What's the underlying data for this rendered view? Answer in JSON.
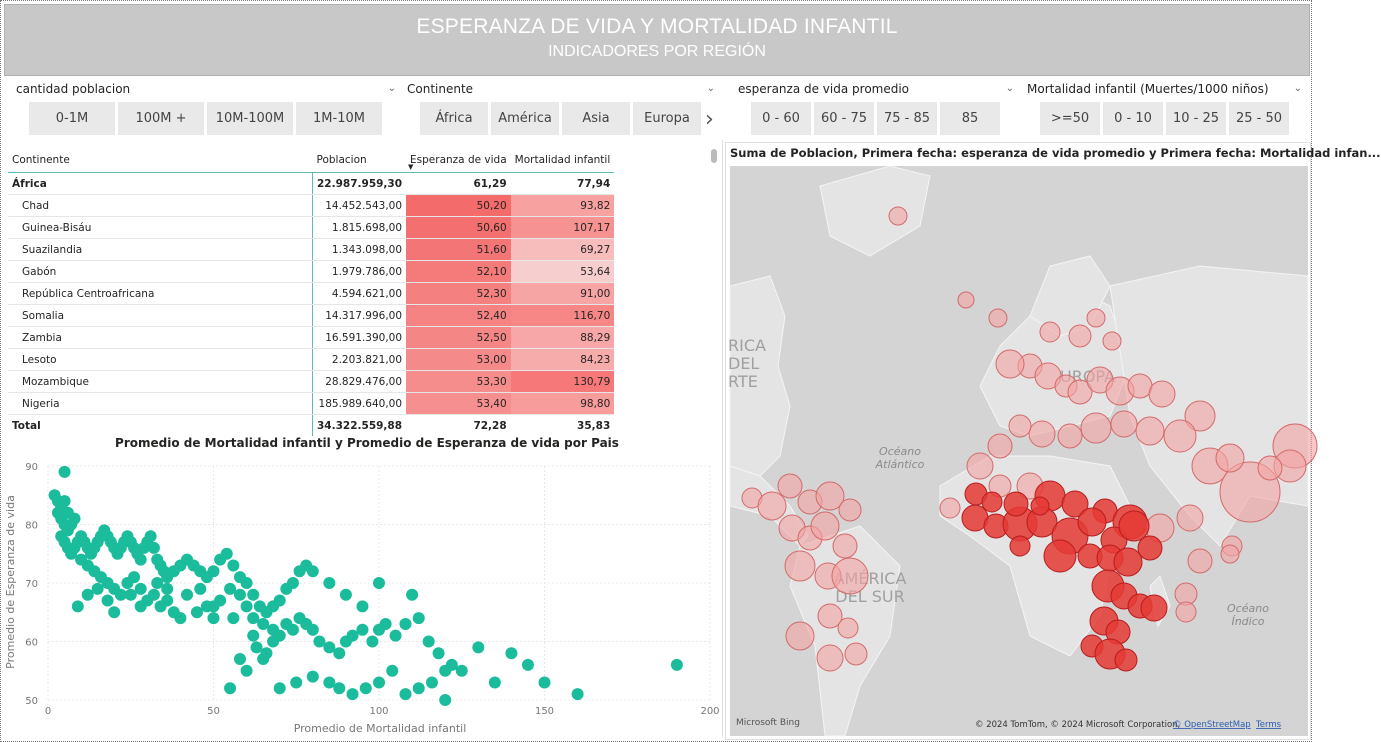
{
  "header": {
    "title": "ESPERANZA DE VIDA Y MORTALIDAD INFANTIL",
    "subtitle": "INDICADORES POR REGIÓN"
  },
  "slicers": [
    {
      "label": "cantidad poblacion",
      "options": [
        "0-1M",
        "100M +",
        "10M-100M",
        "1M-10M"
      ]
    },
    {
      "label": "Continente",
      "options": [
        "África",
        "América",
        "Asia",
        "Europa"
      ]
    },
    {
      "label": "esperanza de vida promedio",
      "options": [
        "0 - 60",
        "60 - 75",
        "75 - 85",
        "85"
      ]
    },
    {
      "label": "Mortalidad infantil (Muertes/1000 niños)",
      "options": [
        ">=50",
        "0 - 10",
        "10 - 25",
        "25 - 50"
      ]
    }
  ],
  "table": {
    "headers": [
      "Continente",
      "Poblacion",
      "Esperanza de vida",
      "Mortalidad infantil"
    ],
    "group": {
      "name": "África",
      "pob": "22.987.959,30",
      "esp": "61,29",
      "mort": "77,94"
    },
    "rows": [
      {
        "name": "Chad",
        "pob": "14.452.543,00",
        "esp": "50,20",
        "mort": "93,82"
      },
      {
        "name": "Guinea-Bisáu",
        "pob": "1.815.698,00",
        "esp": "50,60",
        "mort": "107,17"
      },
      {
        "name": "Suazilandia",
        "pob": "1.343.098,00",
        "esp": "51,60",
        "mort": "69,27"
      },
      {
        "name": "Gabón",
        "pob": "1.979.786,00",
        "esp": "52,10",
        "mort": "53,64"
      },
      {
        "name": "República Centroafricana",
        "pob": "4.594.621,00",
        "esp": "52,30",
        "mort": "91,00"
      },
      {
        "name": "Somalia",
        "pob": "14.317.996,00",
        "esp": "52,40",
        "mort": "116,70"
      },
      {
        "name": "Zambia",
        "pob": "16.591.390,00",
        "esp": "52,50",
        "mort": "88,29"
      },
      {
        "name": "Lesoto",
        "pob": "2.203.821,00",
        "esp": "53,00",
        "mort": "84,23"
      },
      {
        "name": "Mozambique",
        "pob": "28.829.476,00",
        "esp": "53,30",
        "mort": "130,79"
      },
      {
        "name": "Nigeria",
        "pob": "185.989.640,00",
        "esp": "53,40",
        "mort": "98,80"
      }
    ],
    "total": {
      "name": "Total",
      "pob": "34.322.559,88",
      "esp": "72,28",
      "mort": "35,83"
    }
  },
  "colors": {
    "banner": "#c8c8c8",
    "scatter": "#1abc9c",
    "map_land": "#e2e2e2",
    "map_water": "#d2d2d2",
    "bubble": "#e53935"
  },
  "chart_data": {
    "type": "scatter",
    "title": "Promedio de Mortalidad infantil y Promedio de Esperanza de vida por Pais",
    "xlabel": "Promedio de Mortalidad infantil",
    "ylabel": "Promedio de Esperanza de vida",
    "xlim": [
      0,
      200
    ],
    "ylim": [
      50,
      90
    ],
    "xticks": [
      0,
      50,
      100,
      150,
      200
    ],
    "yticks": [
      50,
      60,
      70,
      80,
      90
    ],
    "points": [
      [
        5,
        89
      ],
      [
        2,
        85
      ],
      [
        3,
        84
      ],
      [
        4,
        83
      ],
      [
        5,
        84
      ],
      [
        6,
        82
      ],
      [
        3,
        82
      ],
      [
        4,
        81
      ],
      [
        5,
        80
      ],
      [
        6,
        79
      ],
      [
        7,
        80
      ],
      [
        8,
        81
      ],
      [
        4,
        78
      ],
      [
        5,
        77
      ],
      [
        6,
        76
      ],
      [
        7,
        75
      ],
      [
        8,
        76
      ],
      [
        9,
        77
      ],
      [
        10,
        78
      ],
      [
        11,
        77
      ],
      [
        12,
        76
      ],
      [
        13,
        75
      ],
      [
        14,
        76
      ],
      [
        15,
        77
      ],
      [
        16,
        78
      ],
      [
        17,
        79
      ],
      [
        18,
        78
      ],
      [
        19,
        77
      ],
      [
        20,
        76
      ],
      [
        21,
        75
      ],
      [
        22,
        76
      ],
      [
        23,
        77
      ],
      [
        24,
        78
      ],
      [
        25,
        77
      ],
      [
        26,
        76
      ],
      [
        27,
        75
      ],
      [
        28,
        74
      ],
      [
        29,
        76
      ],
      [
        30,
        77
      ],
      [
        31,
        78
      ],
      [
        32,
        76
      ],
      [
        33,
        74
      ],
      [
        34,
        73
      ],
      [
        35,
        72
      ],
      [
        36,
        71
      ],
      [
        38,
        72
      ],
      [
        40,
        73
      ],
      [
        42,
        74
      ],
      [
        44,
        73
      ],
      [
        46,
        72
      ],
      [
        48,
        71
      ],
      [
        50,
        72
      ],
      [
        52,
        74
      ],
      [
        54,
        75
      ],
      [
        56,
        73
      ],
      [
        58,
        71
      ],
      [
        60,
        70
      ],
      [
        62,
        68
      ],
      [
        64,
        66
      ],
      [
        66,
        65
      ],
      [
        68,
        66
      ],
      [
        70,
        67
      ],
      [
        72,
        69
      ],
      [
        74,
        70
      ],
      [
        76,
        72
      ],
      [
        78,
        73
      ],
      [
        80,
        72
      ],
      [
        85,
        70
      ],
      [
        90,
        68
      ],
      [
        95,
        66
      ],
      [
        100,
        70
      ],
      [
        10,
        74
      ],
      [
        12,
        73
      ],
      [
        14,
        72
      ],
      [
        16,
        71
      ],
      [
        18,
        70
      ],
      [
        20,
        69
      ],
      [
        22,
        68
      ],
      [
        24,
        70
      ],
      [
        26,
        71
      ],
      [
        28,
        69
      ],
      [
        30,
        67
      ],
      [
        32,
        68
      ],
      [
        34,
        66
      ],
      [
        36,
        67
      ],
      [
        38,
        65
      ],
      [
        40,
        64
      ],
      [
        45,
        65
      ],
      [
        48,
        66
      ],
      [
        50,
        64
      ],
      [
        52,
        67
      ],
      [
        55,
        69
      ],
      [
        58,
        68
      ],
      [
        60,
        66
      ],
      [
        62,
        64
      ],
      [
        65,
        63
      ],
      [
        68,
        62
      ],
      [
        70,
        61
      ],
      [
        72,
        63
      ],
      [
        74,
        62
      ],
      [
        76,
        64
      ],
      [
        78,
        63
      ],
      [
        80,
        62
      ],
      [
        82,
        60
      ],
      [
        85,
        59
      ],
      [
        88,
        58
      ],
      [
        90,
        60
      ],
      [
        92,
        61
      ],
      [
        95,
        62
      ],
      [
        98,
        60
      ],
      [
        100,
        62
      ],
      [
        102,
        63
      ],
      [
        105,
        61
      ],
      [
        108,
        63
      ],
      [
        110,
        68
      ],
      [
        112,
        64
      ],
      [
        115,
        60
      ],
      [
        118,
        58
      ],
      [
        120,
        55
      ],
      [
        122,
        56
      ],
      [
        125,
        55
      ],
      [
        130,
        59
      ],
      [
        135,
        53
      ],
      [
        140,
        58
      ],
      [
        145,
        56
      ],
      [
        150,
        53
      ],
      [
        160,
        51
      ],
      [
        190,
        56
      ],
      [
        55,
        52
      ],
      [
        60,
        55
      ],
      [
        65,
        57
      ],
      [
        70,
        52
      ],
      [
        75,
        53
      ],
      [
        80,
        54
      ],
      [
        85,
        53
      ],
      [
        88,
        52
      ],
      [
        92,
        51
      ],
      [
        96,
        52
      ],
      [
        100,
        53
      ],
      [
        104,
        55
      ],
      [
        108,
        51
      ],
      [
        112,
        52
      ],
      [
        116,
        53
      ],
      [
        120,
        50
      ],
      [
        9,
        66
      ],
      [
        12,
        68
      ],
      [
        15,
        69
      ],
      [
        18,
        67
      ],
      [
        20,
        65
      ],
      [
        25,
        68
      ],
      [
        28,
        66
      ],
      [
        33,
        70
      ],
      [
        36,
        69
      ],
      [
        42,
        68
      ],
      [
        46,
        69
      ],
      [
        50,
        66
      ],
      [
        56,
        64
      ],
      [
        62,
        61
      ],
      [
        66,
        58
      ],
      [
        58,
        57
      ],
      [
        63,
        59
      ],
      [
        68,
        60
      ]
    ]
  },
  "map": {
    "title": "Suma de Poblacion, Primera fecha: esperanza de vida promedio y Primera fecha: Mortalidad infan...",
    "labels": [
      "Océano",
      "Atlántico",
      "AMÉRICA",
      "DEL SUR",
      "Océano",
      "Índico",
      "RICA",
      "DEL",
      "RTE",
      "UROPA"
    ],
    "attribution": "© 2024 TomTom, © 2024 Microsoft Corporation,",
    "osm": "© OpenStreetMap",
    "terms": "Terms",
    "logo": "Microsoft Bing"
  }
}
